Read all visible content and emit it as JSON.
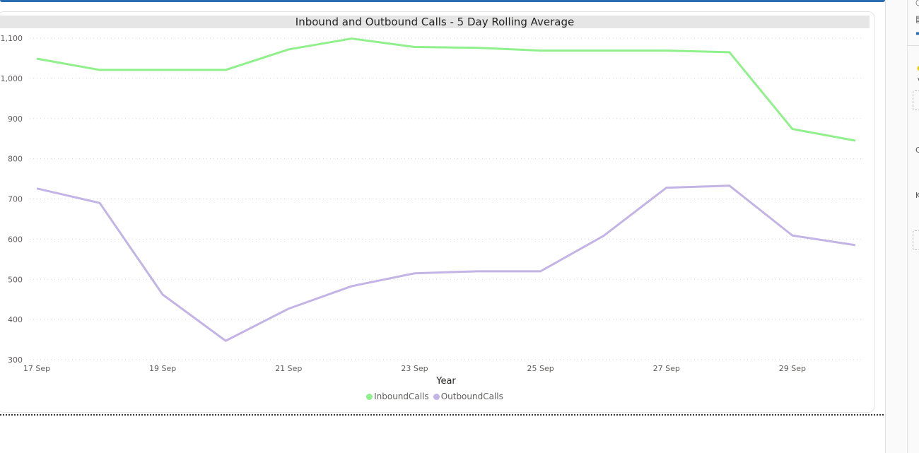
{
  "chart_data": {
    "type": "line",
    "title": "Inbound and Outbound Calls - 5 Day Rolling Average",
    "xlabel": "Year",
    "ylabel": "",
    "x": [
      "17 Sep",
      "18 Sep",
      "19 Sep",
      "20 Sep",
      "21 Sep",
      "22 Sep",
      "23 Sep",
      "24 Sep",
      "25 Sep",
      "26 Sep",
      "27 Sep",
      "28 Sep",
      "29 Sep",
      "30 Sep"
    ],
    "x_tick_labels": [
      "17 Sep",
      "19 Sep",
      "21 Sep",
      "23 Sep",
      "25 Sep",
      "27 Sep",
      "29 Sep"
    ],
    "y_tick_labels": [
      "300",
      "400",
      "500",
      "600",
      "700",
      "800",
      "900",
      "1,000",
      "1,100"
    ],
    "ylim": [
      300,
      1100
    ],
    "grid": true,
    "legend_position": "bottom-center",
    "series": [
      {
        "name": "InboundCalls",
        "color": "#90f08c",
        "values": [
          1049,
          1021,
          1021,
          1021,
          1072,
          1099,
          1078,
          1076,
          1069,
          1069,
          1069,
          1065,
          874,
          845
        ]
      },
      {
        "name": "OutboundCalls",
        "color": "#c3b4e6",
        "values": [
          726,
          690,
          462,
          347,
          427,
          483,
          515,
          520,
          520,
          608,
          728,
          733,
          609,
          585
        ]
      }
    ]
  },
  "right_pane": {
    "letters": [
      "V",
      "C",
      "K"
    ],
    "star_color": "#f2c811"
  }
}
